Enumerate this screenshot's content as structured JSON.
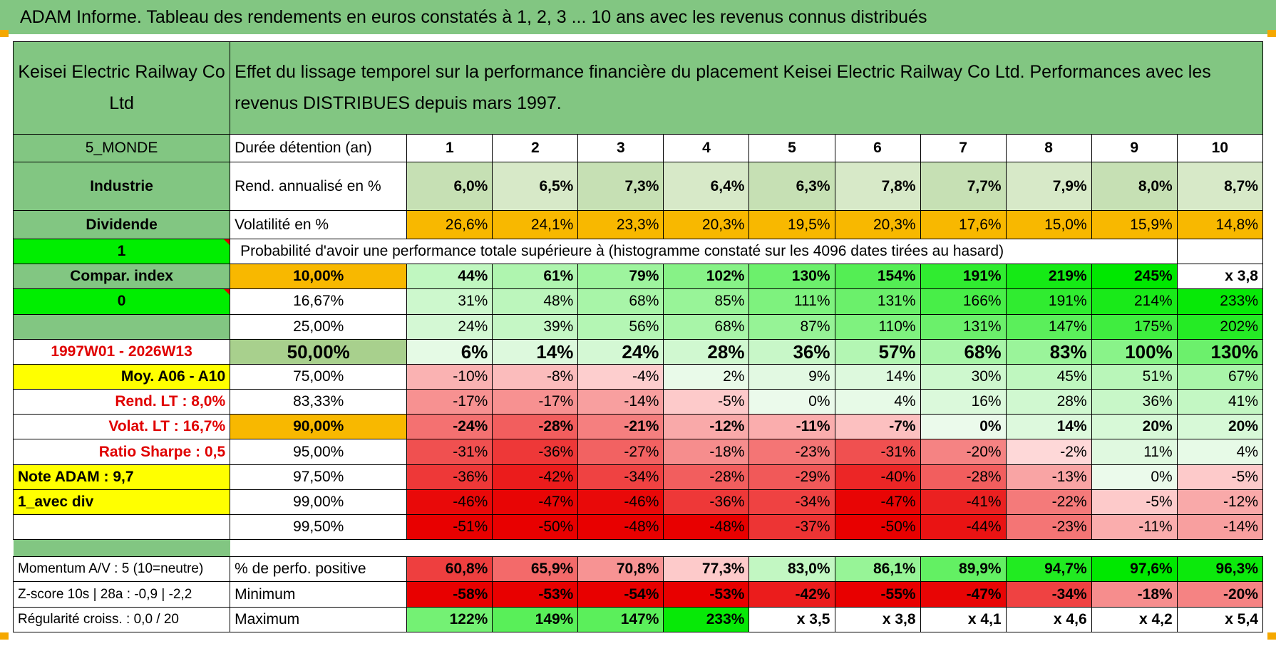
{
  "title": "ADAM Informe. Tableau des rendements en euros constatés à 1, 2, 3 ... 10 ans avec les revenus connus distribués",
  "company": "Keisei Electric Railway Co Ltd",
  "header_text": "Effet du lissage temporel sur la performance financière du placement Keisei Electric Railway Co Ltd. Performances avec les revenus DISTRIBUES depuis mars 1997.",
  "left": {
    "region": "5_MONDE",
    "sector": "Industrie",
    "type": "Dividende",
    "one": "1",
    "compar": "Compar. index",
    "zero": "0",
    "period": "1997W01 - 2026W13",
    "moy": "Moy. A06 - A10",
    "rend_lt": "Rend. LT :   8,0%",
    "volat_lt": "Volat. LT :   16,7%",
    "sharpe": "Ratio Sharpe :    0,5",
    "note": "Note ADAM : 9,7",
    "avec_div": "1_avec div",
    "momentum": "Momentum A/V : 5 (10=neutre)",
    "zscore": "Z-score 10s | 28a : -0,9 | -2,2",
    "regularite": "Régularité croiss. : 0,0 / 20"
  },
  "labels": {
    "duree": "Durée détention (an)",
    "rend": "Rend. annualisé en %",
    "volat": "Volatilité en %",
    "proba": "Probabilité d'avoir une performance totale supérieure à (histogramme constaté sur les 4096 dates tirées au hasard)",
    "perfo_pos": "% de perfo. positive",
    "minimum": "Minimum",
    "maximum": "Maximum"
  },
  "years": [
    "1",
    "2",
    "3",
    "4",
    "5",
    "6",
    "7",
    "8",
    "9",
    "10"
  ],
  "rend": [
    "6,0%",
    "6,5%",
    "7,3%",
    "6,4%",
    "6,3%",
    "7,8%",
    "7,7%",
    "7,9%",
    "8,0%",
    "8,7%"
  ],
  "volat": [
    "26,6%",
    "24,1%",
    "23,3%",
    "20,3%",
    "19,5%",
    "20,3%",
    "17,6%",
    "15,0%",
    "15,9%",
    "14,8%"
  ],
  "quantiles": [
    {
      "p": "10,00%",
      "values": [
        "44%",
        "61%",
        "79%",
        "102%",
        "130%",
        "154%",
        "191%",
        "219%",
        "245%",
        "x 3,8"
      ]
    },
    {
      "p": "16,67%",
      "values": [
        "31%",
        "48%",
        "68%",
        "85%",
        "111%",
        "131%",
        "166%",
        "191%",
        "214%",
        "233%"
      ]
    },
    {
      "p": "25,00%",
      "values": [
        "24%",
        "39%",
        "56%",
        "68%",
        "87%",
        "110%",
        "131%",
        "147%",
        "175%",
        "202%"
      ]
    },
    {
      "p": "50,00%",
      "values": [
        "6%",
        "14%",
        "24%",
        "28%",
        "36%",
        "57%",
        "68%",
        "83%",
        "100%",
        "130%"
      ]
    },
    {
      "p": "75,00%",
      "values": [
        "-10%",
        "-8%",
        "-4%",
        "2%",
        "9%",
        "14%",
        "30%",
        "45%",
        "51%",
        "67%"
      ]
    },
    {
      "p": "83,33%",
      "values": [
        "-17%",
        "-17%",
        "-14%",
        "-5%",
        "0%",
        "4%",
        "16%",
        "28%",
        "36%",
        "41%"
      ]
    },
    {
      "p": "90,00%",
      "values": [
        "-24%",
        "-28%",
        "-21%",
        "-12%",
        "-11%",
        "-7%",
        "0%",
        "14%",
        "20%",
        "20%"
      ]
    },
    {
      "p": "95,00%",
      "values": [
        "-31%",
        "-36%",
        "-27%",
        "-18%",
        "-23%",
        "-31%",
        "-20%",
        "-2%",
        "11%",
        "4%"
      ]
    },
    {
      "p": "97,50%",
      "values": [
        "-36%",
        "-42%",
        "-34%",
        "-28%",
        "-29%",
        "-40%",
        "-28%",
        "-13%",
        "0%",
        "-5%"
      ]
    },
    {
      "p": "99,00%",
      "values": [
        "-46%",
        "-47%",
        "-46%",
        "-36%",
        "-34%",
        "-47%",
        "-41%",
        "-22%",
        "-5%",
        "-12%"
      ]
    },
    {
      "p": "99,50%",
      "values": [
        "-51%",
        "-50%",
        "-48%",
        "-48%",
        "-37%",
        "-50%",
        "-44%",
        "-23%",
        "-11%",
        "-14%"
      ]
    }
  ],
  "perfo_pos": [
    "60,8%",
    "65,9%",
    "70,8%",
    "77,3%",
    "83,0%",
    "86,1%",
    "89,9%",
    "94,7%",
    "97,6%",
    "96,3%"
  ],
  "minimum": [
    "-58%",
    "-53%",
    "-54%",
    "-53%",
    "-42%",
    "-55%",
    "-47%",
    "-34%",
    "-18%",
    "-20%"
  ],
  "maximum": [
    "122%",
    "149%",
    "147%",
    "233%",
    "x 3,5",
    "x 3,8",
    "x 4,1",
    "x 4,6",
    "x 4,2",
    "x 5,4"
  ],
  "colors": {
    "header_green": "#82c682",
    "orange": "#f8b800",
    "yellow": "#ffff00",
    "bright_green": "#00ee00",
    "red_text": "#e00000"
  }
}
